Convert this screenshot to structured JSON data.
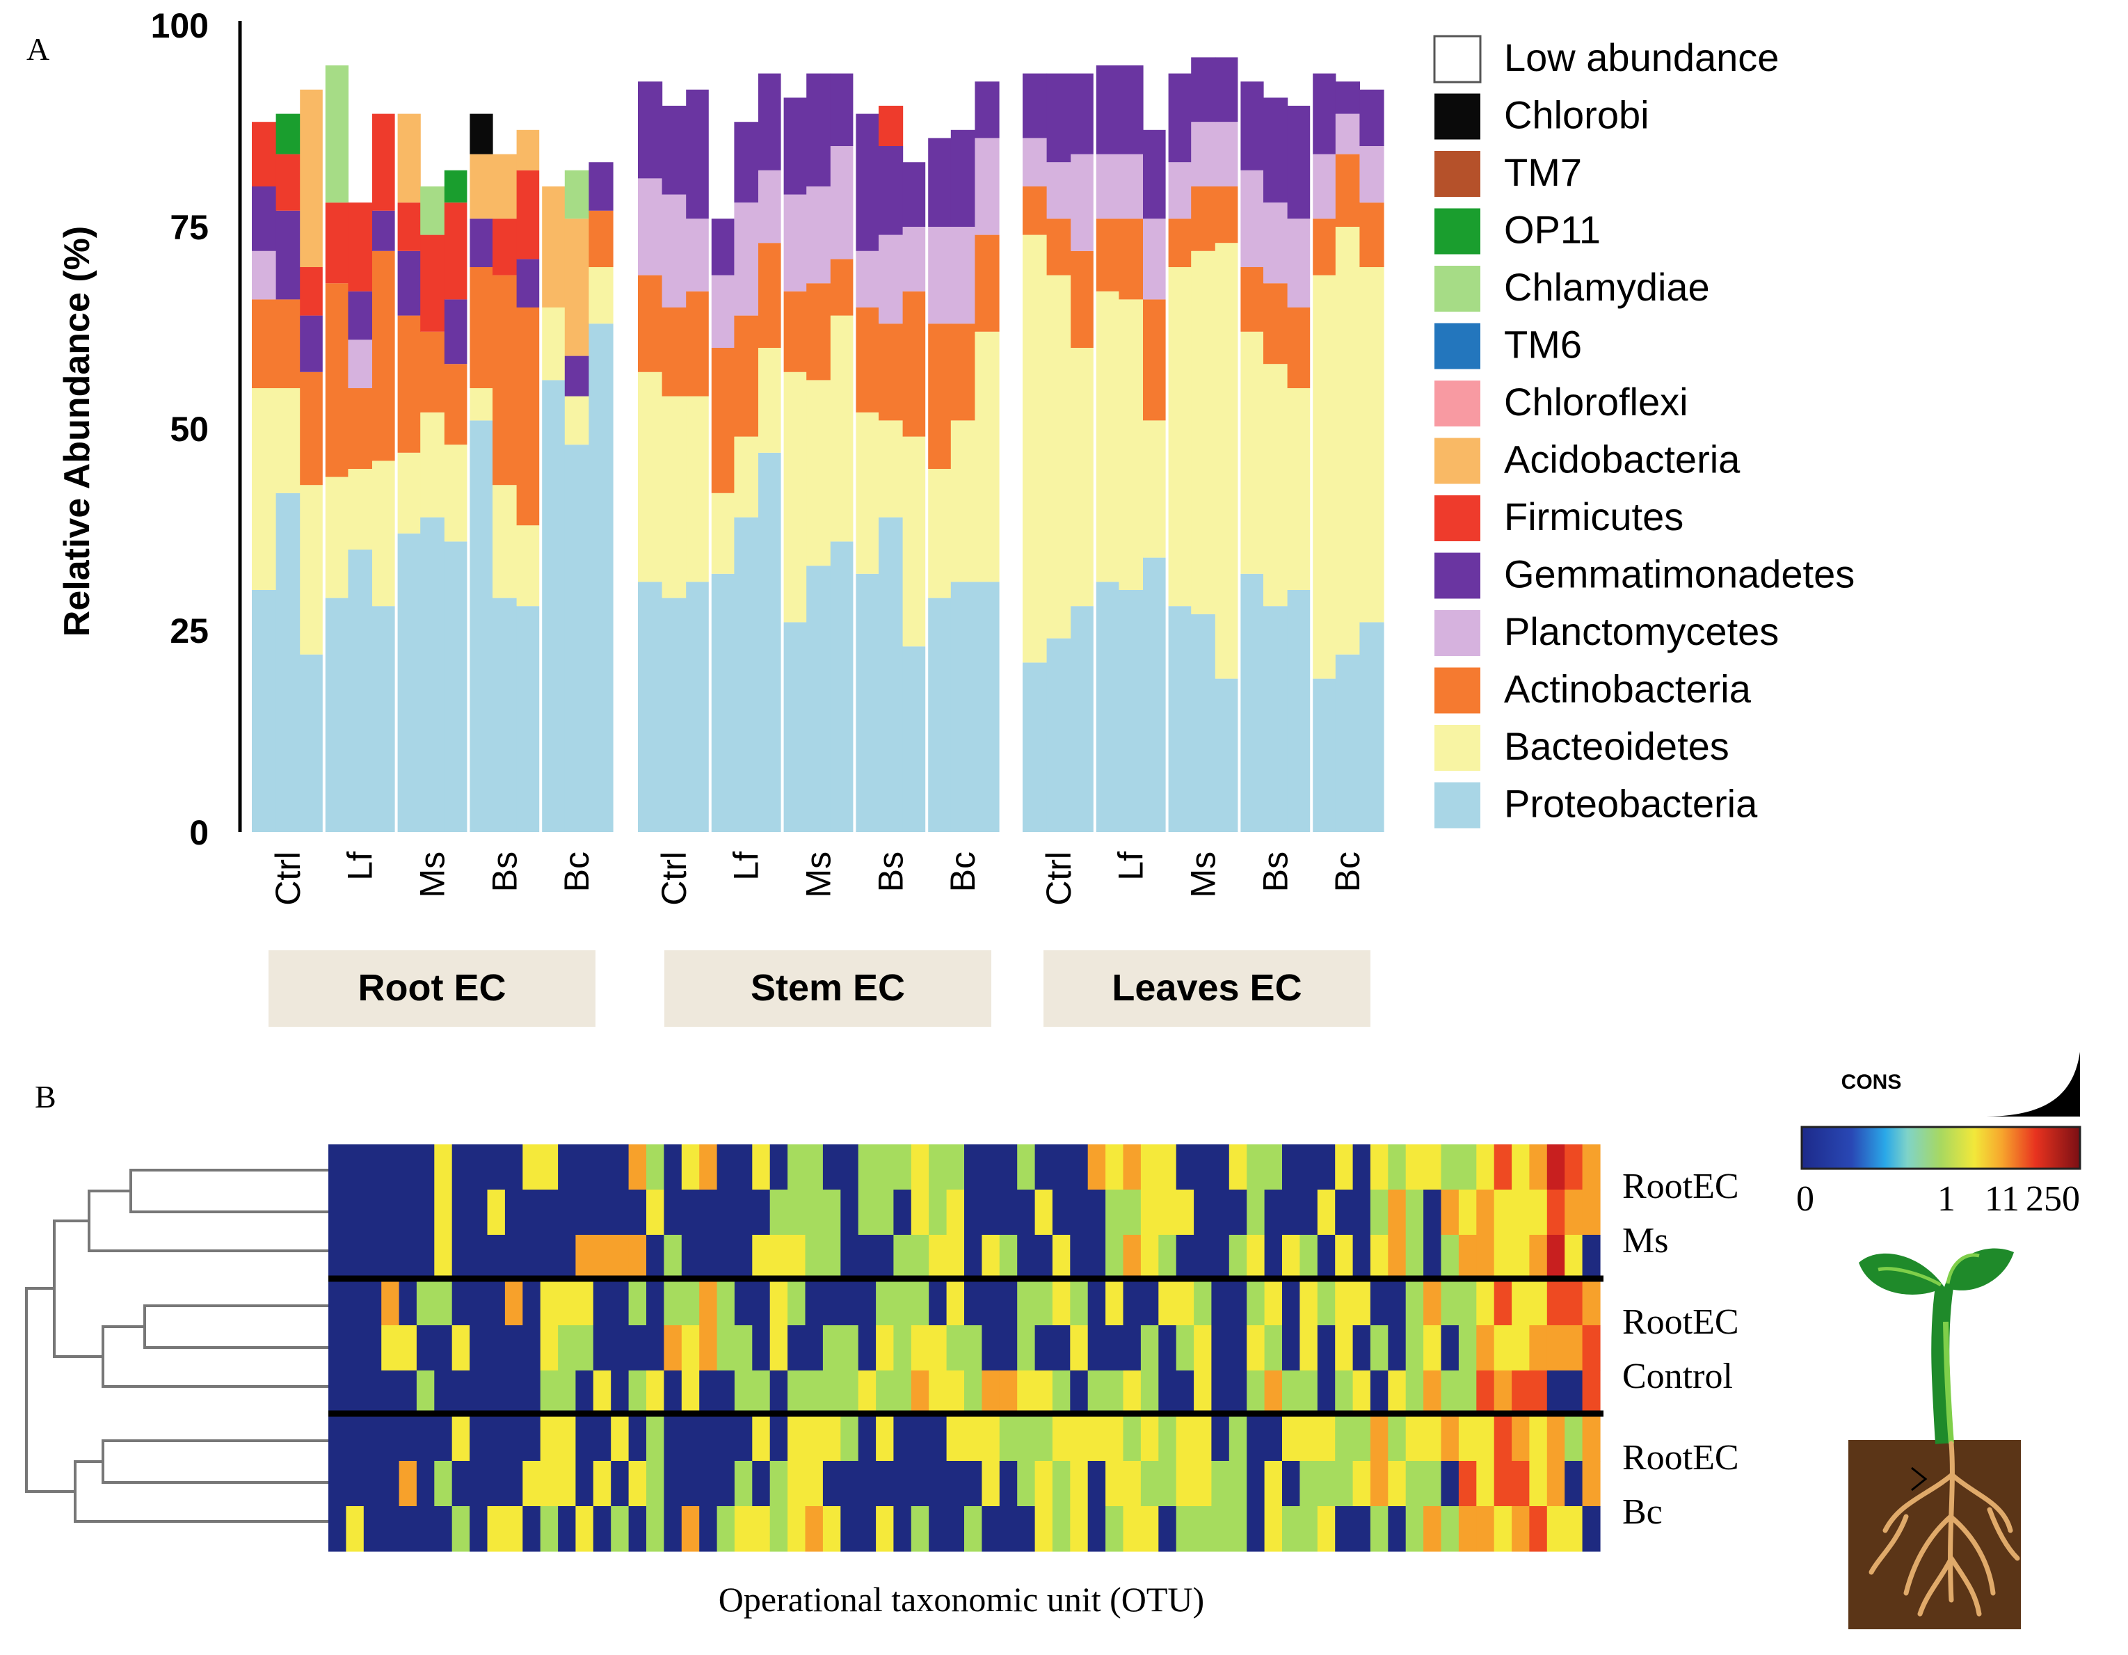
{
  "panel_a_label": "A",
  "panel_b_label": "B",
  "chart_data": [
    {
      "type": "bar",
      "stacked": true,
      "title": "",
      "ylabel": "Relative Abundance (%)",
      "ylim": [
        0,
        100
      ],
      "yticks": [
        0,
        25,
        50,
        75,
        100
      ],
      "groups": [
        "Root EC",
        "Stem EC",
        "Leaves EC"
      ],
      "treatments": [
        "Ctrl",
        "Lf",
        "Ms",
        "Bs",
        "Bc"
      ],
      "bars_per_treatment": 3,
      "legend_position": "right",
      "series": [
        {
          "name": "Low abundance",
          "color": "#ffffff"
        },
        {
          "name": "Chlorobi",
          "color": "#0a0a0a"
        },
        {
          "name": "TM7",
          "color": "#b5512a"
        },
        {
          "name": "OP11",
          "color": "#1a9e2e"
        },
        {
          "name": "Chlamydiae",
          "color": "#a6dc86"
        },
        {
          "name": "TM6",
          "color": "#2376bd"
        },
        {
          "name": "Chloroflexi",
          "color": "#f89aa2"
        },
        {
          "name": "Acidobacteria",
          "color": "#f9b965"
        },
        {
          "name": "Firmicutes",
          "color": "#ee3b2c"
        },
        {
          "name": "Gemmatimonadetes",
          "color": "#6a35a1"
        },
        {
          "name": "Planctomycetes",
          "color": "#d6b2de"
        },
        {
          "name": "Actinobacteria",
          "color": "#f57a30"
        },
        {
          "name": "Bacteoidetes",
          "color": "#f8f4a3"
        },
        {
          "name": "Proteobacteria",
          "color": "#a9d6e6"
        }
      ],
      "samples": [
        {
          "group": "Root EC",
          "treatment": "Ctrl",
          "layers": {
            "Proteobacteria": 30,
            "Bacteoidetes": 25,
            "Actinobacteria": 11,
            "Planctomycetes": 6,
            "Gemmatimonadetes": 8,
            "Firmicutes": 8
          }
        },
        {
          "group": "Root EC",
          "treatment": "Ctrl",
          "layers": {
            "Proteobacteria": 42,
            "Bacteoidetes": 13,
            "Actinobacteria": 11,
            "Gemmatimonadetes": 11,
            "Firmicutes": 7,
            "OP11": 5
          }
        },
        {
          "group": "Root EC",
          "treatment": "Ctrl",
          "layers": {
            "Proteobacteria": 22,
            "Bacteoidetes": 21,
            "Actinobacteria": 14,
            "Gemmatimonadetes": 7,
            "Firmicutes": 6,
            "Acidobacteria": 22
          }
        },
        {
          "group": "Root EC",
          "treatment": "Lf",
          "layers": {
            "Proteobacteria": 29,
            "Bacteoidetes": 15,
            "Actinobacteria": 24,
            "Firmicutes": 10,
            "Chlamydiae": 17
          }
        },
        {
          "group": "Root EC",
          "treatment": "Lf",
          "layers": {
            "Proteobacteria": 35,
            "Bacteoidetes": 10,
            "Actinobacteria": 10,
            "Planctomycetes": 6,
            "Gemmatimonadetes": 6,
            "Firmicutes": 11
          }
        },
        {
          "group": "Root EC",
          "treatment": "Lf",
          "layers": {
            "Proteobacteria": 28,
            "Bacteoidetes": 18,
            "Actinobacteria": 26,
            "Gemmatimonadetes": 5,
            "Firmicutes": 12
          }
        },
        {
          "group": "Root EC",
          "treatment": "Ms",
          "layers": {
            "Proteobacteria": 37,
            "Bacteoidetes": 10,
            "Actinobacteria": 17,
            "Gemmatimonadetes": 8,
            "Firmicutes": 6,
            "Acidobacteria": 11
          }
        },
        {
          "group": "Root EC",
          "treatment": "Ms",
          "layers": {
            "Proteobacteria": 39,
            "Bacteoidetes": 13,
            "Actinobacteria": 10,
            "Firmicutes": 12,
            "Chlamydiae": 6
          }
        },
        {
          "group": "Root EC",
          "treatment": "Ms",
          "layers": {
            "Proteobacteria": 36,
            "Bacteoidetes": 12,
            "Actinobacteria": 10,
            "Gemmatimonadetes": 8,
            "Firmicutes": 12,
            "OP11": 4
          }
        },
        {
          "group": "Root EC",
          "treatment": "Bs",
          "layers": {
            "Proteobacteria": 51,
            "Bacteoidetes": 4,
            "Actinobacteria": 15,
            "Gemmatimonadetes": 6,
            "Acidobacteria": 8,
            "Chlorobi": 5
          }
        },
        {
          "group": "Root EC",
          "treatment": "Bs",
          "layers": {
            "Proteobacteria": 29,
            "Bacteoidetes": 14,
            "Actinobacteria": 26,
            "Firmicutes": 7,
            "Acidobacteria": 8
          }
        },
        {
          "group": "Root EC",
          "treatment": "Bs",
          "layers": {
            "Proteobacteria": 28,
            "Bacteoidetes": 10,
            "Actinobacteria": 27,
            "Gemmatimonadetes": 6,
            "Firmicutes": 11,
            "Acidobacteria": 5
          }
        },
        {
          "group": "Root EC",
          "treatment": "Bc",
          "layers": {
            "Proteobacteria": 56,
            "Bacteoidetes": 9,
            "Acidobacteria": 15
          }
        },
        {
          "group": "Root EC",
          "treatment": "Bc",
          "layers": {
            "Proteobacteria": 48,
            "Bacteoidetes": 6,
            "Gemmatimonadetes": 5,
            "Acidobacteria": 17,
            "Chlamydiae": 6
          }
        },
        {
          "group": "Root EC",
          "treatment": "Bc",
          "layers": {
            "Proteobacteria": 63,
            "Bacteoidetes": 7,
            "Actinobacteria": 7,
            "Gemmatimonadetes": 6
          }
        },
        {
          "group": "Stem EC",
          "treatment": "Ctrl",
          "layers": {
            "Proteobacteria": 31,
            "Bacteoidetes": 26,
            "Actinobacteria": 12,
            "Planctomycetes": 12,
            "Gemmatimonadetes": 12
          }
        },
        {
          "group": "Stem EC",
          "treatment": "Ctrl",
          "layers": {
            "Proteobacteria": 29,
            "Bacteoidetes": 25,
            "Actinobacteria": 11,
            "Planctomycetes": 14,
            "Gemmatimonadetes": 11
          }
        },
        {
          "group": "Stem EC",
          "treatment": "Ctrl",
          "layers": {
            "Proteobacteria": 31,
            "Bacteoidetes": 23,
            "Actinobacteria": 13,
            "Planctomycetes": 9,
            "Gemmatimonadetes": 16
          }
        },
        {
          "group": "Stem EC",
          "treatment": "Lf",
          "layers": {
            "Proteobacteria": 32,
            "Bacteoidetes": 10,
            "Actinobacteria": 18,
            "Planctomycetes": 9,
            "Gemmatimonadetes": 7
          }
        },
        {
          "group": "Stem EC",
          "treatment": "Lf",
          "layers": {
            "Proteobacteria": 39,
            "Bacteoidetes": 10,
            "Actinobacteria": 15,
            "Planctomycetes": 14,
            "Gemmatimonadetes": 10
          }
        },
        {
          "group": "Stem EC",
          "treatment": "Lf",
          "layers": {
            "Proteobacteria": 47,
            "Bacteoidetes": 13,
            "Actinobacteria": 13,
            "Planctomycetes": 9,
            "Gemmatimonadetes": 12
          }
        },
        {
          "group": "Stem EC",
          "treatment": "Ms",
          "layers": {
            "Proteobacteria": 26,
            "Bacteoidetes": 31,
            "Actinobacteria": 10,
            "Planctomycetes": 12,
            "Gemmatimonadetes": 12
          }
        },
        {
          "group": "Stem EC",
          "treatment": "Ms",
          "layers": {
            "Proteobacteria": 33,
            "Bacteoidetes": 23,
            "Actinobacteria": 12,
            "Planctomycetes": 12,
            "Gemmatimonadetes": 14
          }
        },
        {
          "group": "Stem EC",
          "treatment": "Ms",
          "layers": {
            "Proteobacteria": 36,
            "Bacteoidetes": 28,
            "Actinobacteria": 7,
            "Planctomycetes": 14,
            "Gemmatimonadetes": 9
          }
        },
        {
          "group": "Stem EC",
          "treatment": "Bs",
          "layers": {
            "Proteobacteria": 32,
            "Bacteoidetes": 20,
            "Actinobacteria": 13,
            "Planctomycetes": 7,
            "Gemmatimonadetes": 17
          }
        },
        {
          "group": "Stem EC",
          "treatment": "Bs",
          "layers": {
            "Proteobacteria": 39,
            "Bacteoidetes": 12,
            "Actinobacteria": 12,
            "Planctomycetes": 11,
            "Gemmatimonadetes": 11,
            "Firmicutes": 5
          }
        },
        {
          "group": "Stem EC",
          "treatment": "Bs",
          "layers": {
            "Proteobacteria": 23,
            "Bacteoidetes": 26,
            "Actinobacteria": 18,
            "Planctomycetes": 8,
            "Gemmatimonadetes": 8
          }
        },
        {
          "group": "Stem EC",
          "treatment": "Bc",
          "layers": {
            "Proteobacteria": 29,
            "Bacteoidetes": 16,
            "Actinobacteria": 18,
            "Planctomycetes": 12,
            "Gemmatimonadetes": 11
          }
        },
        {
          "group": "Stem EC",
          "treatment": "Bc",
          "layers": {
            "Proteobacteria": 31,
            "Bacteoidetes": 20,
            "Actinobacteria": 12,
            "Planctomycetes": 12,
            "Gemmatimonadetes": 12
          }
        },
        {
          "group": "Stem EC",
          "treatment": "Bc",
          "layers": {
            "Proteobacteria": 31,
            "Bacteoidetes": 31,
            "Actinobacteria": 12,
            "Planctomycetes": 12,
            "Gemmatimonadetes": 7
          }
        },
        {
          "group": "Leaves EC",
          "treatment": "Ctrl",
          "layers": {
            "Proteobacteria": 21,
            "Bacteoidetes": 53,
            "Actinobacteria": 6,
            "Planctomycetes": 6,
            "Gemmatimonadetes": 8
          }
        },
        {
          "group": "Leaves EC",
          "treatment": "Ctrl",
          "layers": {
            "Proteobacteria": 24,
            "Bacteoidetes": 45,
            "Actinobacteria": 7,
            "Planctomycetes": 7,
            "Gemmatimonadetes": 11
          }
        },
        {
          "group": "Leaves EC",
          "treatment": "Ctrl",
          "layers": {
            "Proteobacteria": 28,
            "Bacteoidetes": 32,
            "Actinobacteria": 12,
            "Planctomycetes": 12,
            "Gemmatimonadetes": 10
          }
        },
        {
          "group": "Leaves EC",
          "treatment": "Lf",
          "layers": {
            "Proteobacteria": 31,
            "Bacteoidetes": 36,
            "Actinobacteria": 9,
            "Planctomycetes": 8,
            "Gemmatimonadetes": 11
          }
        },
        {
          "group": "Leaves EC",
          "treatment": "Lf",
          "layers": {
            "Proteobacteria": 30,
            "Bacteoidetes": 36,
            "Actinobacteria": 10,
            "Planctomycetes": 8,
            "Gemmatimonadetes": 11
          }
        },
        {
          "group": "Leaves EC",
          "treatment": "Lf",
          "layers": {
            "Proteobacteria": 34,
            "Bacteoidetes": 17,
            "Actinobacteria": 15,
            "Planctomycetes": 10,
            "Gemmatimonadetes": 11
          }
        },
        {
          "group": "Leaves EC",
          "treatment": "Ms",
          "layers": {
            "Proteobacteria": 28,
            "Bacteoidetes": 42,
            "Actinobacteria": 6,
            "Planctomycetes": 7,
            "Gemmatimonadetes": 11
          }
        },
        {
          "group": "Leaves EC",
          "treatment": "Ms",
          "layers": {
            "Proteobacteria": 27,
            "Bacteoidetes": 45,
            "Actinobacteria": 8,
            "Planctomycetes": 8,
            "Gemmatimonadetes": 8
          }
        },
        {
          "group": "Leaves EC",
          "treatment": "Ms",
          "layers": {
            "Proteobacteria": 19,
            "Bacteoidetes": 54,
            "Actinobacteria": 7,
            "Planctomycetes": 8,
            "Gemmatimonadetes": 8
          }
        },
        {
          "group": "Leaves EC",
          "treatment": "Bs",
          "layers": {
            "Proteobacteria": 32,
            "Bacteoidetes": 30,
            "Actinobacteria": 8,
            "Planctomycetes": 12,
            "Gemmatimonadetes": 11
          }
        },
        {
          "group": "Leaves EC",
          "treatment": "Bs",
          "layers": {
            "Proteobacteria": 28,
            "Bacteoidetes": 30,
            "Actinobacteria": 10,
            "Planctomycetes": 10,
            "Gemmatimonadetes": 13
          }
        },
        {
          "group": "Leaves EC",
          "treatment": "Bs",
          "layers": {
            "Proteobacteria": 30,
            "Bacteoidetes": 25,
            "Actinobacteria": 10,
            "Planctomycetes": 11,
            "Gemmatimonadetes": 14
          }
        },
        {
          "group": "Leaves EC",
          "treatment": "Bc",
          "layers": {
            "Proteobacteria": 19,
            "Bacteoidetes": 50,
            "Actinobacteria": 7,
            "Planctomycetes": 8,
            "Gemmatimonadetes": 10
          }
        },
        {
          "group": "Leaves EC",
          "treatment": "Bc",
          "layers": {
            "Proteobacteria": 22,
            "Bacteoidetes": 53,
            "Actinobacteria": 9,
            "Planctomycetes": 5,
            "Gemmatimonadetes": 4
          }
        },
        {
          "group": "Leaves EC",
          "treatment": "Bc",
          "layers": {
            "Proteobacteria": 26,
            "Bacteoidetes": 44,
            "Actinobacteria": 8,
            "Planctomycetes": 7,
            "Gemmatimonadetes": 7
          }
        }
      ]
    },
    {
      "type": "heatmap",
      "xlabel": "Operational taxonomic unit (OTU)",
      "row_groups": [
        {
          "label_line1": "RootEC",
          "label_line2": "Ms"
        },
        {
          "label_line1": "RootEC",
          "label_line2": "Control"
        },
        {
          "label_line1": "RootEC",
          "label_line2": "Bc"
        }
      ],
      "rows": 9,
      "columns": 72,
      "dendrogram": true,
      "colorbar": {
        "title": "CONS",
        "tick_labels": [
          "0",
          "1",
          "11",
          "250"
        ],
        "range": [
          0,
          250
        ]
      },
      "row_profiles": [
        "0000001100000000001110001111111111110011110022221011111111012102223334333332",
        "00000111000011100112101111111112222210011111111111002211111111222333333322",
        "00000011000011111010001111221111111111111111111111110111111222223333322222"
      ]
    }
  ]
}
